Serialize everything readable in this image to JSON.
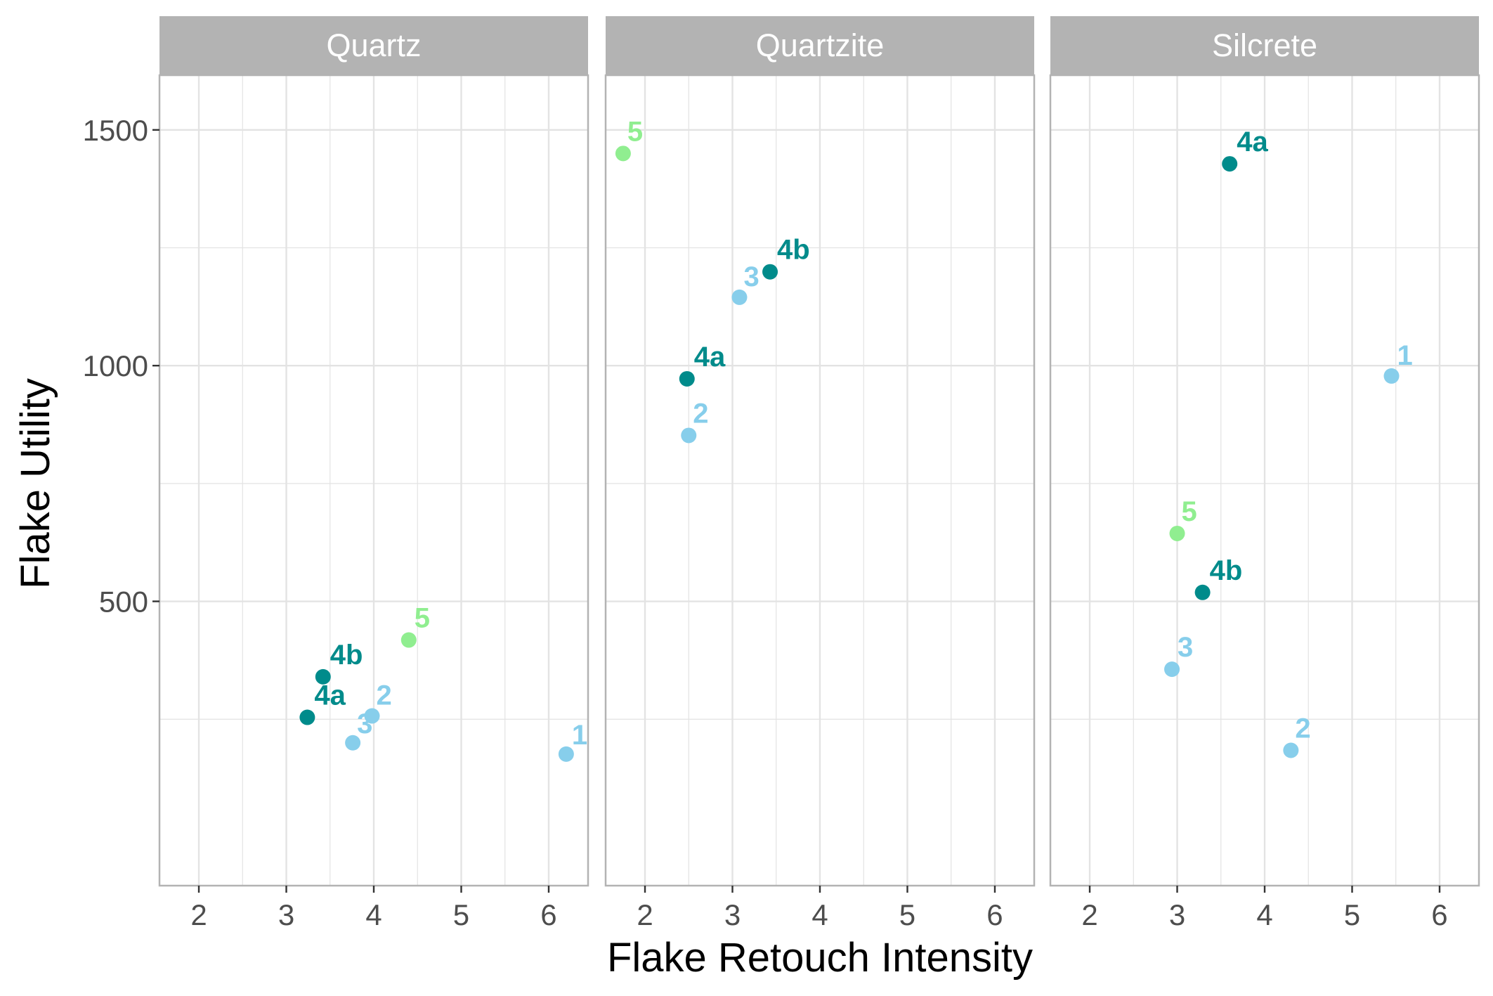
{
  "colors": {
    "4a": "#008B8B",
    "4b": "#008B8B",
    "5": "#90EE90",
    "1": "#87CEEB",
    "2": "#87CEEB",
    "3": "#87CEEB",
    "strip_bg": "#B3B3B3",
    "grid": "#E3E3E3",
    "panel_border": "#B3B3B3"
  },
  "chart_data": {
    "type": "scatter",
    "xlabel": "Flake Retouch Intensity",
    "ylabel": "Flake Utility",
    "xlim": [
      1.55,
      6.45
    ],
    "ylim": [
      -103,
      1616
    ],
    "x_ticks": [
      2,
      3,
      4,
      5,
      6
    ],
    "y_ticks": [
      500,
      1000,
      1500
    ],
    "grid": true,
    "facets": [
      {
        "name": "Quartz",
        "points": [
          {
            "label": "1",
            "x": 6.2,
            "y": 176
          },
          {
            "label": "2",
            "x": 3.98,
            "y": 257
          },
          {
            "label": "3",
            "x": 3.76,
            "y": 200
          },
          {
            "label": "4a",
            "x": 3.24,
            "y": 254
          },
          {
            "label": "4b",
            "x": 3.42,
            "y": 340
          },
          {
            "label": "5",
            "x": 4.4,
            "y": 418
          }
        ]
      },
      {
        "name": "Quartzite",
        "points": [
          {
            "label": "2",
            "x": 2.5,
            "y": 852
          },
          {
            "label": "3",
            "x": 3.08,
            "y": 1145
          },
          {
            "label": "4a",
            "x": 2.48,
            "y": 972
          },
          {
            "label": "4b",
            "x": 3.43,
            "y": 1199
          },
          {
            "label": "5",
            "x": 1.75,
            "y": 1450
          }
        ]
      },
      {
        "name": "Silcrete",
        "points": [
          {
            "label": "1",
            "x": 5.45,
            "y": 978
          },
          {
            "label": "2",
            "x": 4.3,
            "y": 184
          },
          {
            "label": "3",
            "x": 2.94,
            "y": 356
          },
          {
            "label": "4a",
            "x": 3.6,
            "y": 1428
          },
          {
            "label": "4b",
            "x": 3.29,
            "y": 519
          },
          {
            "label": "5",
            "x": 3.0,
            "y": 644
          }
        ]
      }
    ]
  }
}
